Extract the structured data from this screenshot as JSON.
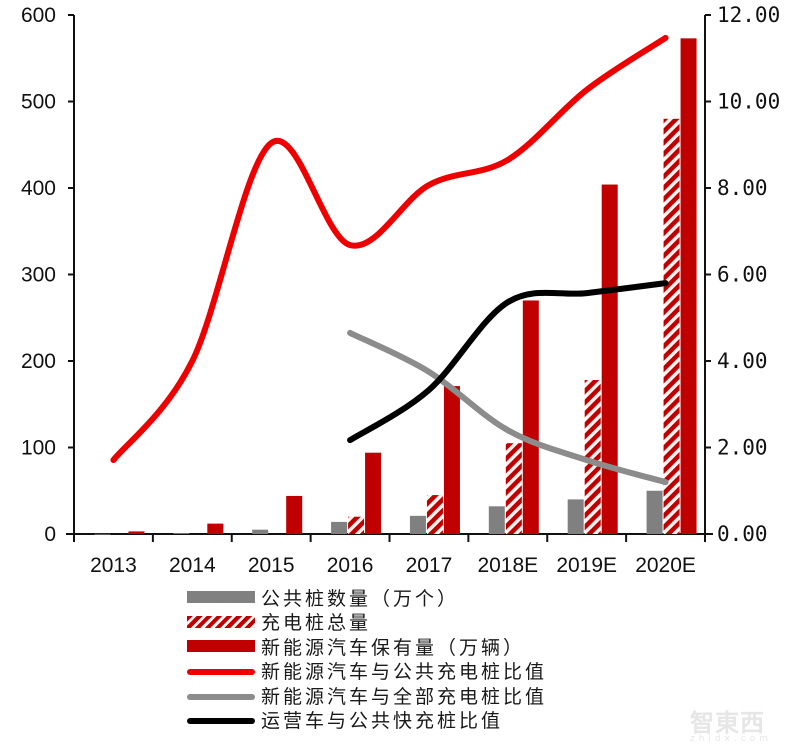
{
  "chart_data": {
    "type": "bar+line (dual axis)",
    "title": "",
    "xlabel": "",
    "ylabel_left": "",
    "ylabel_right": "",
    "categories": [
      "2013",
      "2014",
      "2015",
      "2016",
      "2017",
      "2018E",
      "2019E",
      "2020E"
    ],
    "left_axis": {
      "min": 0,
      "max": 600,
      "ticks": [
        "0",
        "100",
        "200",
        "300",
        "400",
        "500",
        "600"
      ]
    },
    "right_axis": {
      "min": 0,
      "max": 12,
      "ticks": [
        "0.00",
        "2.00",
        "4.00",
        "6.00",
        "8.00",
        "10.00",
        "12.00"
      ]
    },
    "grid": false,
    "legend_position": "bottom",
    "bar_series": [
      {
        "name": "公共桩数量（万个）",
        "axis": "left",
        "style": "solid",
        "color": "#808080",
        "values": [
          0.2,
          1,
          5,
          14,
          21,
          32,
          40,
          50
        ]
      },
      {
        "name": "充电桩总量",
        "axis": "left",
        "style": "hatched",
        "color": "#c00000",
        "values": [
          null,
          null,
          null,
          20,
          45,
          105,
          178,
          480
        ]
      },
      {
        "name": "新能源汽车保有量（万辆）",
        "axis": "left",
        "style": "solid",
        "color": "#c00000",
        "values": [
          3,
          12,
          44,
          94,
          171,
          270,
          404,
          573
        ]
      }
    ],
    "line_series": [
      {
        "name": "新能源汽车与公共充电桩比值",
        "axis": "right",
        "color": "#ee0000",
        "width": 6,
        "values": [
          1.71,
          4.0,
          9.04,
          6.68,
          8.07,
          8.65,
          10.27,
          11.47
        ]
      },
      {
        "name": "新能源汽车与全部充电桩比值",
        "axis": "right",
        "color": "#8c8c8c",
        "width": 6,
        "values": [
          null,
          null,
          null,
          4.65,
          3.75,
          2.4,
          1.71,
          1.2
        ]
      },
      {
        "name": "运营车与公共快充桩比值",
        "axis": "right",
        "color": "#000000",
        "width": 6,
        "values": [
          null,
          null,
          null,
          2.17,
          3.33,
          5.36,
          5.57,
          5.8
        ]
      }
    ]
  },
  "legend": {
    "items": [
      {
        "label": "公共桩数量（万个）",
        "swatch": "bar-gray"
      },
      {
        "label": "充电桩总量",
        "swatch": "bar-hatch"
      },
      {
        "label": "新能源汽车保有量（万辆）",
        "swatch": "bar-red"
      },
      {
        "label": "新能源汽车与公共充电桩比值",
        "swatch": "line",
        "color": "#ee0000"
      },
      {
        "label": "新能源汽车与全部充电桩比值",
        "swatch": "line",
        "color": "#8c8c8c"
      },
      {
        "label": "运营车与公共快充桩比值",
        "swatch": "line",
        "color": "#000000"
      }
    ]
  },
  "watermark": {
    "text": "智東西",
    "sub": "zhidx.com"
  }
}
